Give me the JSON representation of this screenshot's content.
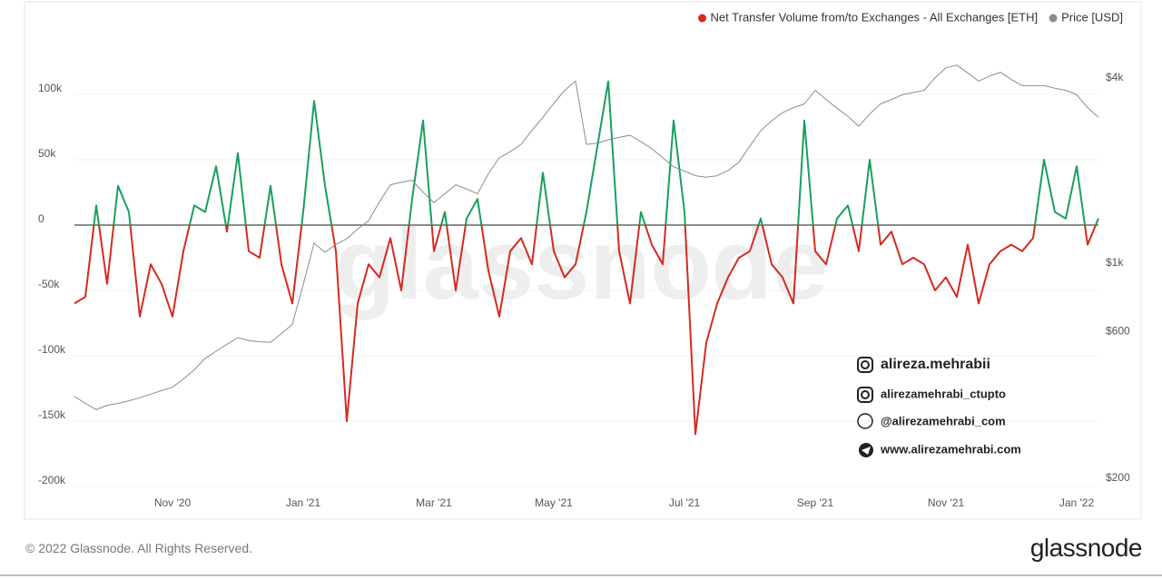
{
  "chart_data": {
    "type": "line",
    "categories": [
      null,
      null,
      null,
      null,
      null,
      null,
      null,
      null,
      null,
      "Nov '20",
      null,
      null,
      null,
      null,
      null,
      null,
      null,
      null,
      null,
      null,
      null,
      "Jan '21",
      null,
      null,
      null,
      null,
      null,
      null,
      null,
      null,
      null,
      null,
      null,
      "Mar '21",
      null,
      null,
      null,
      null,
      null,
      null,
      null,
      null,
      null,
      null,
      "May '21",
      null,
      null,
      null,
      null,
      null,
      null,
      null,
      null,
      null,
      null,
      null,
      "Jul '21",
      null,
      null,
      null,
      null,
      null,
      null,
      null,
      null,
      null,
      null,
      null,
      "Sep '21",
      null,
      null,
      null,
      null,
      null,
      null,
      null,
      null,
      null,
      null,
      null,
      "Nov '21",
      null,
      null,
      null,
      null,
      null,
      null,
      null,
      null,
      null,
      null,
      null,
      "Jan '22",
      null,
      null
    ],
    "series": [
      {
        "name": "Net Transfer Volume from/to Exchanges - All Exchanges [ETH]",
        "color": "#d42a20",
        "positive_color": "#17a05d",
        "values": [
          -60000,
          -55000,
          15000,
          -45000,
          30000,
          10000,
          -70000,
          -30000,
          -45000,
          -70000,
          -20000,
          15000,
          10000,
          45000,
          -5000,
          55000,
          -20000,
          -25000,
          30000,
          -30000,
          -60000,
          10000,
          95000,
          30000,
          -20000,
          -150000,
          -60000,
          -30000,
          -40000,
          -10000,
          -50000,
          20000,
          80000,
          -20000,
          10000,
          -50000,
          5000,
          20000,
          -35000,
          -70000,
          -20000,
          -10000,
          -30000,
          40000,
          -20000,
          -40000,
          -30000,
          10000,
          60000,
          110000,
          -20000,
          -60000,
          10000,
          -15000,
          -30000,
          80000,
          10000,
          -160000,
          -90000,
          -60000,
          -40000,
          -25000,
          -20000,
          5000,
          -30000,
          -40000,
          -60000,
          80000,
          -20000,
          -30000,
          5000,
          15000,
          -20000,
          50000,
          -15000,
          -5000,
          -30000,
          -25000,
          -30000,
          -50000,
          -40000,
          -55000,
          -15000,
          -60000,
          -30000,
          -20000,
          -15000,
          -20000,
          -10000,
          50000,
          10000,
          5000,
          45000,
          -15000,
          5000
        ]
      },
      {
        "name": "Price [USD]",
        "color": "#8c8c8c",
        "axis": "y2",
        "values": [
          369,
          350,
          334,
          345,
          350,
          357,
          365,
          375,
          385,
          395,
          420,
          450,
          490,
          517,
          545,
          572,
          560,
          555,
          553,
          590,
          632,
          850,
          1161,
          1084,
          1150,
          1199,
          1290,
          1373,
          1580,
          1796,
          1830,
          1858,
          1700,
          1570,
          1680,
          1796,
          1740,
          1680,
          1950,
          2198,
          2300,
          2432,
          2700,
          2976,
          3300,
          3642,
          3900,
          2432,
          2450,
          2515,
          2560,
          2603,
          2480,
          2352,
          2200,
          2056,
          1990,
          1922,
          1900,
          1922,
          2000,
          2127,
          2400,
          2693,
          2900,
          3079,
          3200,
          3290,
          3642,
          3400,
          3185,
          3000,
          2784,
          3050,
          3290,
          3400,
          3523,
          3580,
          3642,
          4000,
          4310,
          4400,
          4150,
          3900,
          4050,
          4170,
          3950,
          3770,
          3770,
          3770,
          3700,
          3642,
          3523,
          3200,
          2976
        ]
      }
    ],
    "ylim": [
      -200000,
      150000
    ],
    "yticks": [
      {
        "value": -200000,
        "label": "-200k"
      },
      {
        "value": -150000,
        "label": "-150k"
      },
      {
        "value": -100000,
        "label": "-100k"
      },
      {
        "value": -50000,
        "label": "-50k"
      },
      0,
      {
        "value": 50000,
        "label": "50k"
      },
      {
        "value": 100000,
        "label": "100k"
      }
    ],
    "y2lim": [
      188,
      5760
    ],
    "y2_log": true,
    "y2ticks": [
      {
        "value": 200,
        "label": "$200"
      },
      {
        "value": 600,
        "label": "$600"
      },
      {
        "value": 1000,
        "label": "$1k"
      },
      {
        "value": 4000,
        "label": "$4k"
      }
    ],
    "grid": true,
    "legend": "top-right"
  },
  "watermark": {
    "background": "glassnode",
    "instagram": "alireza.mehrabii",
    "instagram2": "alirezamehrabi_ctupto",
    "web_handle": "@alirezamehrabi_com",
    "telegram": "www.alirezamehrabi.com"
  },
  "footer": {
    "copyright": "© 2022 Glassnode. All Rights Reserved.",
    "brand": "glassnode"
  }
}
